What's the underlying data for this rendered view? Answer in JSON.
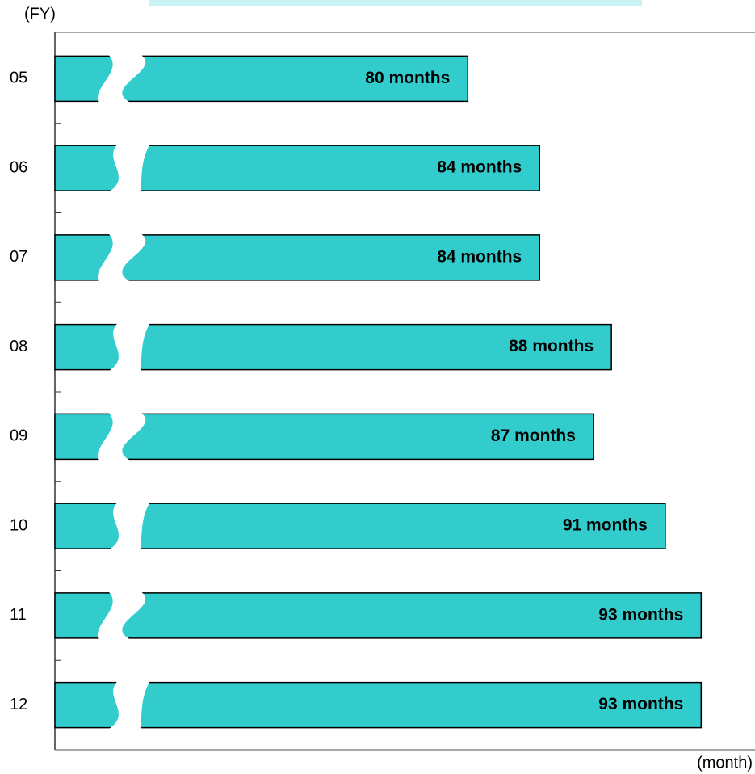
{
  "chart_data": {
    "type": "bar",
    "orientation": "horizontal",
    "y_label": "(FY)",
    "x_label": "(month)",
    "categories": [
      "05",
      "06",
      "07",
      "08",
      "09",
      "10",
      "11",
      "12"
    ],
    "values": [
      80,
      84,
      84,
      88,
      87,
      91,
      93,
      93
    ],
    "value_labels": [
      "80 months",
      "84 months",
      "84 months",
      "88 months",
      "87 months",
      "91 months",
      "93 months",
      "93 months"
    ],
    "color": "#33cccc",
    "xlim": [
      57,
      96
    ],
    "axis_break": true
  }
}
